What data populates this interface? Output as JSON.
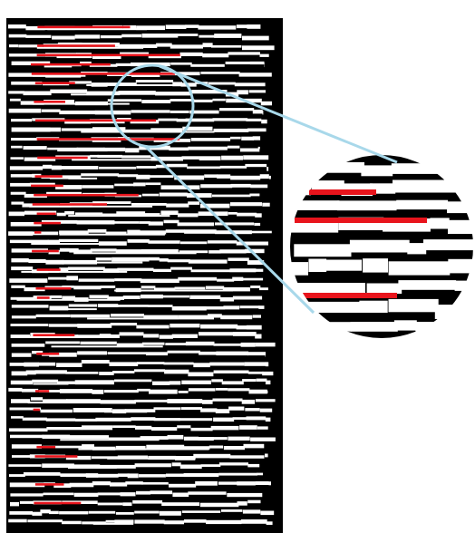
{
  "colors": {
    "page_background": "#ffffff",
    "panel_background": "#000000",
    "line_segments": "#ffffff",
    "highlighted_segments": "#e8141c",
    "magnifier_outline": "#a8d8ea"
  },
  "icons": {
    "magnifier": "zoom-lens"
  }
}
